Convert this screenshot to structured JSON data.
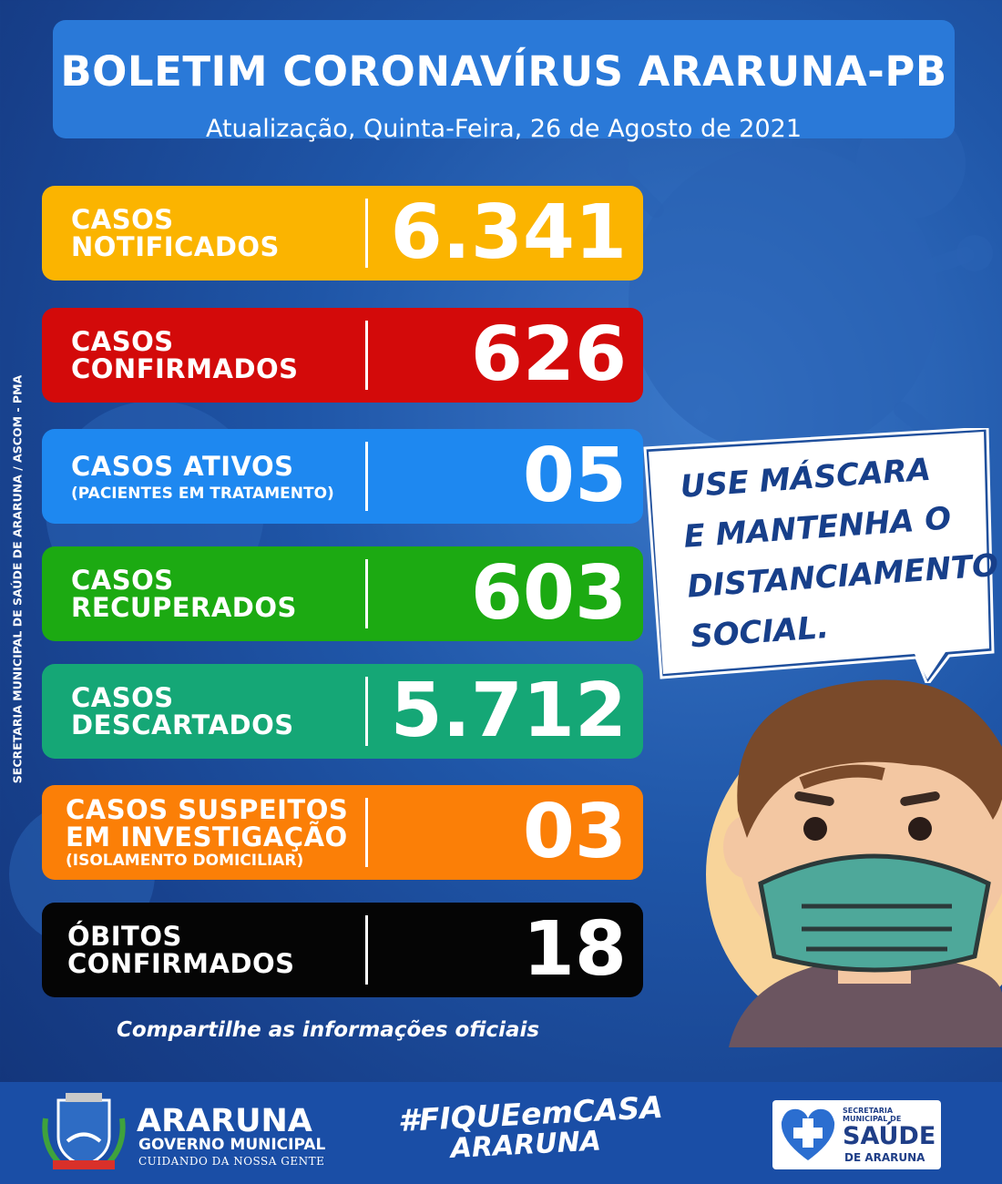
{
  "header": {
    "title": "BOLETIM CORONAVÍRUS ARARUNA-PB",
    "subtitle": "Atualização, Quinta-Feira, 26 de Agosto de 2021"
  },
  "cards": [
    {
      "label": "CASOS\nNOTIFICADOS",
      "note": "",
      "value": "6.341",
      "color": "#fbb400"
    },
    {
      "label": "CASOS\nCONFIRMADOS",
      "note": "",
      "value": "626",
      "color": "#d30a0a"
    },
    {
      "label": "CASOS ATIVOS",
      "note": "(PACIENTES EM TRATAMENTO)",
      "value": "05",
      "color": "#1e88f0"
    },
    {
      "label": "CASOS\nRECUPERADOS",
      "note": "",
      "value": "603",
      "color": "#1caa12"
    },
    {
      "label": "CASOS\nDESCARTADOS",
      "note": "",
      "value": "5.712",
      "color": "#15a776"
    },
    {
      "label": "CASOS SUSPEITOS\nEM INVESTIGAÇÃO",
      "note": "(ISOLAMENTO DOMICILIAR)",
      "value": "03",
      "color": "#fb7f07"
    },
    {
      "label": "ÓBITOS\nCONFIRMADOS",
      "note": "",
      "value": "18",
      "color": "#050505"
    }
  ],
  "share_text": "Compartilhe as informações oficiais",
  "side_credit": "SECRETARIA MUNICIPAL DE SAÚDE DE ARARUNA / ASCOM - PMA",
  "bubble_text": "USE MÁSCARA\nE MANTENHA O\nDISTANCIAMENTO\nSOCIAL.",
  "footer": {
    "brand_name": "ARARUNA",
    "brand_sub": "GOVERNO MUNICIPAL",
    "brand_tag": "CUIDANDO DA NOSSA GENTE",
    "hashtag_line1": "#FIQUEemCASA",
    "hashtag_line2": "ARARUNA",
    "saude_small": "SECRETARIA MUNICIPAL DE",
    "saude_big": "SAÚDE",
    "saude_sub": "DE ARARUNA"
  },
  "colors": {
    "background": "#1f56a8",
    "header": "#2a79d8",
    "footer": "#1a4ea6"
  }
}
